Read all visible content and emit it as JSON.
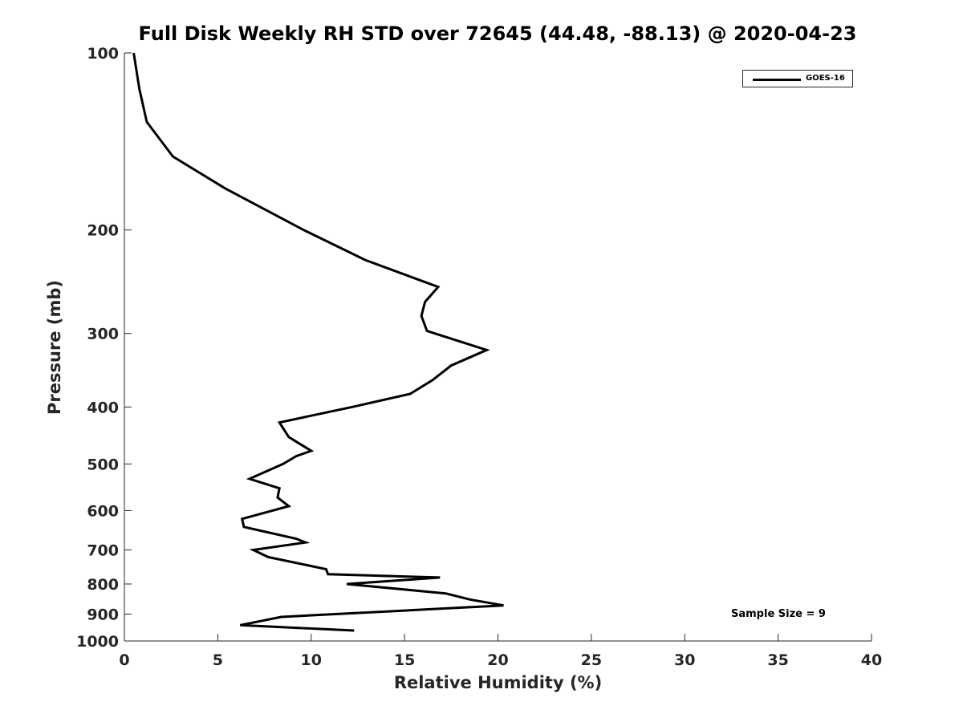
{
  "chart_data": {
    "type": "line",
    "title": "Full Disk Weekly RH STD over 72645 (44.48, -88.13) @ 2020-04-23",
    "xlabel": "Relative Humidity (%)",
    "ylabel": "Pressure (mb)",
    "xlim": [
      0,
      40
    ],
    "ylim": [
      1000,
      100
    ],
    "yscale": "log",
    "xticks": [
      "0",
      "5",
      "10",
      "15",
      "20",
      "25",
      "30",
      "35",
      "40"
    ],
    "yticks": [
      "100",
      "200",
      "300",
      "400",
      "500",
      "600",
      "700",
      "800",
      "900",
      "1000"
    ],
    "legend": {
      "position": "top-right",
      "entries": [
        "GOES-16"
      ]
    },
    "annotation": "Sample Size = 9",
    "series": [
      {
        "name": "GOES-16",
        "color": "#000000",
        "x": [
          0.5,
          0.8,
          1.2,
          2.6,
          5.4,
          9.6,
          12.9,
          16.8,
          16.1,
          15.9,
          16.2,
          19.4,
          17.5,
          16.5,
          15.3,
          12.2,
          8.3,
          8.8,
          10.0,
          9.2,
          8.5,
          6.7,
          8.3,
          8.2,
          8.8,
          6.3,
          6.4,
          9.2,
          9.7,
          6.9,
          7.7,
          10.8,
          10.9,
          16.9,
          11.9,
          17.2,
          18.5,
          20.3,
          17.3,
          8.4,
          6.2,
          12.3
        ],
        "y": [
          100,
          115,
          131,
          150,
          170,
          200,
          225,
          250,
          265,
          280,
          297,
          320,
          340,
          360,
          380,
          400,
          425,
          450,
          475,
          485,
          500,
          530,
          550,
          570,
          590,
          620,
          640,
          670,
          680,
          700,
          720,
          755,
          770,
          780,
          800,
          830,
          850,
          870,
          880,
          910,
          940,
          960
        ]
      }
    ]
  }
}
